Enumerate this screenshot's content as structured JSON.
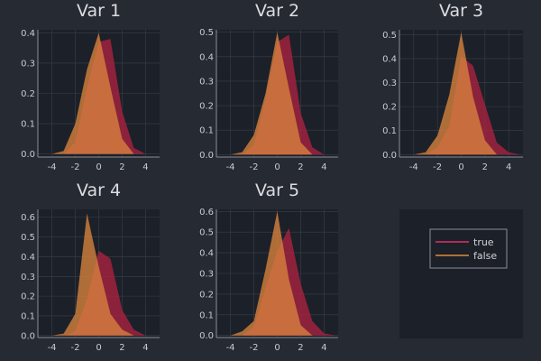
{
  "colors": {
    "background": "#262a33",
    "panel": "#1c2028",
    "grid": "#3a3f49",
    "axis": "#8a8f98",
    "true": "#a5223f",
    "false": "#d8833e"
  },
  "legend": {
    "entries": [
      {
        "label": "true",
        "color": "#e0306b"
      },
      {
        "label": "false",
        "color": "#e08a3e"
      }
    ]
  },
  "chart_data": [
    {
      "type": "area",
      "title": "Var 1",
      "x": [
        -5,
        -4,
        -3,
        -2,
        -1,
        0,
        1,
        2,
        3,
        4,
        5
      ],
      "xticks": [
        -4,
        -2,
        0,
        2,
        4
      ],
      "yticks": [
        0.0,
        0.1,
        0.2,
        0.3,
        0.4
      ],
      "xlim": [
        -5.2,
        5.2
      ],
      "ylim": [
        -0.01,
        0.41
      ],
      "grid": true,
      "series": [
        {
          "name": "true",
          "values": [
            0,
            0,
            0,
            0.04,
            0.22,
            0.37,
            0.38,
            0.14,
            0.02,
            0,
            0
          ]
        },
        {
          "name": "false",
          "values": [
            0,
            0,
            0.01,
            0.1,
            0.28,
            0.4,
            0.22,
            0.05,
            0,
            0,
            0
          ]
        }
      ]
    },
    {
      "type": "area",
      "title": "Var 2",
      "x": [
        -5,
        -4,
        -3,
        -2,
        -1,
        0,
        1,
        2,
        3,
        4,
        5
      ],
      "xticks": [
        -4,
        -2,
        0,
        2,
        4
      ],
      "yticks": [
        0.0,
        0.1,
        0.2,
        0.3,
        0.4,
        0.5
      ],
      "xlim": [
        -5.2,
        5.2
      ],
      "ylim": [
        -0.01,
        0.51
      ],
      "grid": true,
      "series": [
        {
          "name": "true",
          "values": [
            0,
            0,
            0,
            0.04,
            0.23,
            0.46,
            0.49,
            0.17,
            0.03,
            0,
            0
          ]
        },
        {
          "name": "false",
          "values": [
            0,
            0,
            0.01,
            0.08,
            0.25,
            0.5,
            0.27,
            0.05,
            0,
            0,
            0
          ]
        }
      ]
    },
    {
      "type": "area",
      "title": "Var 3",
      "x": [
        -5,
        -4,
        -3,
        -2,
        -1,
        0,
        1,
        2,
        3,
        4,
        5
      ],
      "xticks": [
        -4,
        -2,
        0,
        2,
        4
      ],
      "yticks": [
        0.0,
        0.1,
        0.2,
        0.3,
        0.4,
        0.5
      ],
      "xlim": [
        -5.2,
        5.2
      ],
      "ylim": [
        -0.01,
        0.52
      ],
      "grid": true,
      "series": [
        {
          "name": "true",
          "values": [
            0,
            0,
            0,
            0.03,
            0.12,
            0.41,
            0.37,
            0.21,
            0.05,
            0.01,
            0
          ]
        },
        {
          "name": "false",
          "values": [
            0,
            0,
            0.01,
            0.08,
            0.25,
            0.51,
            0.24,
            0.06,
            0,
            0,
            0
          ]
        }
      ]
    },
    {
      "type": "area",
      "title": "Var 4",
      "x": [
        -5,
        -4,
        -3,
        -2,
        -1,
        0,
        1,
        2,
        3,
        4,
        5
      ],
      "xticks": [
        -4,
        -2,
        0,
        2,
        4
      ],
      "yticks": [
        0.0,
        0.1,
        0.2,
        0.3,
        0.4,
        0.5,
        0.6
      ],
      "xlim": [
        -5.2,
        5.2
      ],
      "ylim": [
        -0.01,
        0.64
      ],
      "grid": true,
      "series": [
        {
          "name": "true",
          "values": [
            0,
            0,
            0,
            0.02,
            0.19,
            0.43,
            0.39,
            0.13,
            0.03,
            0,
            0
          ]
        },
        {
          "name": "false",
          "values": [
            0,
            0,
            0.01,
            0.11,
            0.62,
            0.35,
            0.11,
            0.03,
            0,
            0,
            0
          ]
        }
      ]
    },
    {
      "type": "area",
      "title": "Var 5",
      "x": [
        -5,
        -4,
        -3,
        -2,
        -1,
        0,
        1,
        2,
        3,
        4,
        5
      ],
      "xticks": [
        -4,
        -2,
        0,
        2,
        4
      ],
      "yticks": [
        0.0,
        0.1,
        0.2,
        0.3,
        0.4,
        0.5,
        0.6
      ],
      "xlim": [
        -5.2,
        5.2
      ],
      "ylim": [
        -0.01,
        0.61
      ],
      "grid": true,
      "series": [
        {
          "name": "true",
          "values": [
            0,
            0,
            0,
            0.04,
            0.23,
            0.41,
            0.52,
            0.25,
            0.07,
            0.01,
            0
          ]
        },
        {
          "name": "false",
          "values": [
            0,
            0,
            0.02,
            0.07,
            0.32,
            0.6,
            0.27,
            0.05,
            0,
            0,
            0
          ]
        }
      ]
    }
  ]
}
